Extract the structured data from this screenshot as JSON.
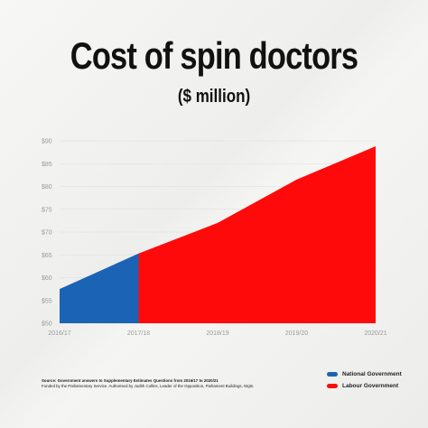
{
  "header": {
    "title": "Cost of spin doctors",
    "subtitle": "($ million)"
  },
  "chart_data": {
    "type": "area",
    "title": "Cost of spin doctors",
    "subtitle": "($ million)",
    "x": [
      "2016/17",
      "2017/18",
      "2018/19",
      "2019/20",
      "2020/21"
    ],
    "y_ticks": [
      "$50",
      "$55",
      "$60",
      "$65",
      "$70",
      "$75",
      "$80",
      "$85",
      "$90"
    ],
    "ylim": [
      50,
      90
    ],
    "grid": true,
    "legend_placement": "bottom-right",
    "series": [
      {
        "name": "National Government",
        "color": "#1a63b5",
        "x": [
          "2016/17",
          "2017/18"
        ],
        "values": [
          57.5,
          65.3
        ]
      },
      {
        "name": "Labour Government",
        "color": "#ff0a0a",
        "x": [
          "2017/18",
          "2018/19",
          "2019/20",
          "2020/21"
        ],
        "values": [
          65.3,
          72.0,
          81.5,
          88.8
        ]
      }
    ]
  },
  "source": {
    "line1": "Source: Government answers to Supplementary Estimates Questions from 2016/17 to 2020/21",
    "line2": "Funded by the Parliamentary Service. Authorised by Judith Collins, Leader of the Opposition, Parliament Buildings, Wgtn."
  },
  "legend": {
    "items": [
      {
        "label": "National Government",
        "color": "#1a63b5"
      },
      {
        "label": "Labour Government",
        "color": "#ff0a0a"
      }
    ]
  }
}
